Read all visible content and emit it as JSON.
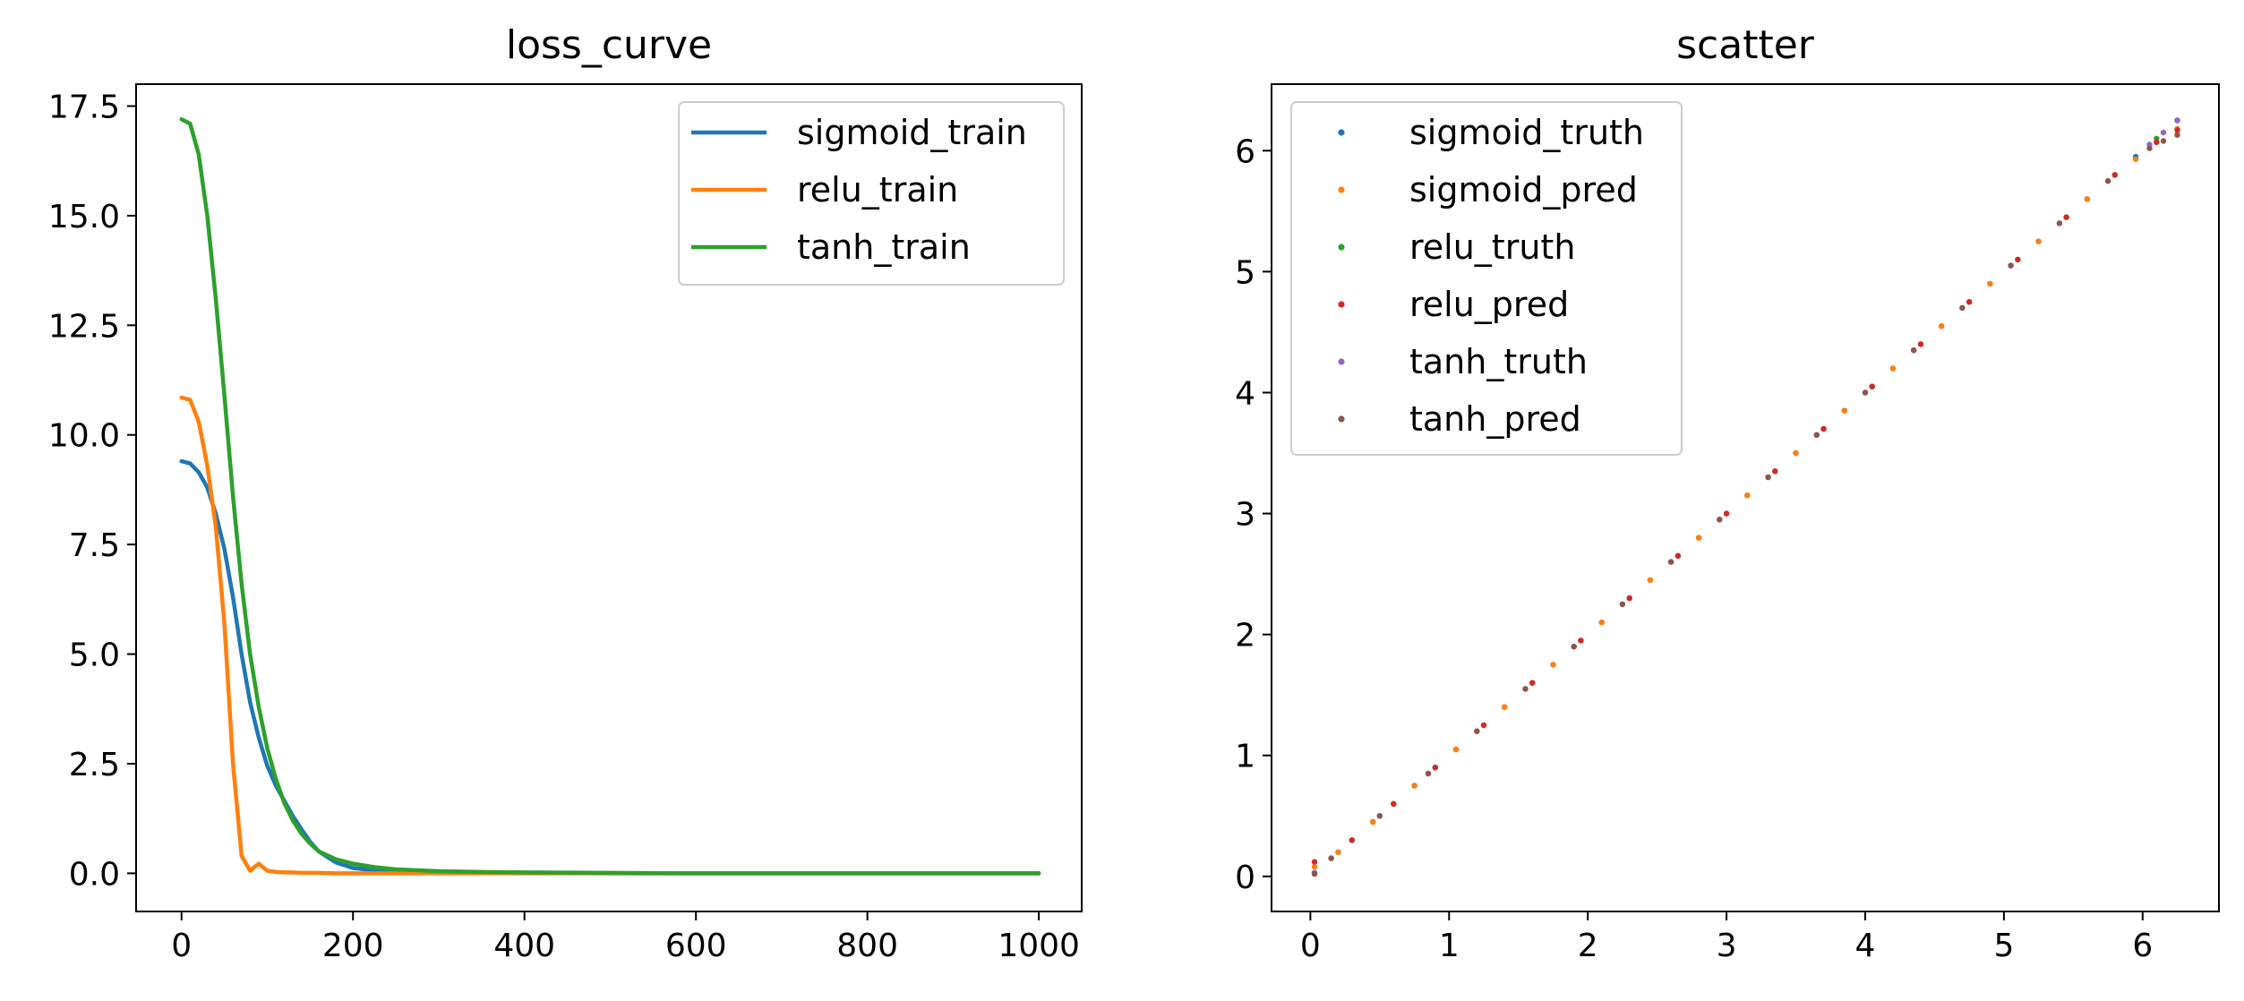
{
  "chart_data": [
    {
      "type": "line",
      "title": "loss_curve",
      "xlabel": "",
      "ylabel": "",
      "xlim": [
        -53,
        1050
      ],
      "ylim": [
        -0.87,
        18.0
      ],
      "xticks": [
        0,
        200,
        400,
        600,
        800,
        1000
      ],
      "xtick_labels": [
        "0",
        "200",
        "400",
        "600",
        "800",
        "1000"
      ],
      "yticks": [
        0.0,
        2.5,
        5.0,
        7.5,
        10.0,
        12.5,
        15.0,
        17.5
      ],
      "ytick_labels": [
        "0.0",
        "2.5",
        "5.0",
        "7.5",
        "10.0",
        "12.5",
        "15.0",
        "17.5"
      ],
      "grid": false,
      "legend_position": "top-right",
      "x": [
        0,
        10,
        20,
        30,
        40,
        50,
        60,
        70,
        80,
        90,
        100,
        110,
        120,
        130,
        140,
        150,
        160,
        180,
        200,
        225,
        250,
        275,
        300,
        350,
        400,
        500,
        600,
        700,
        800,
        900,
        1000
      ],
      "series": [
        {
          "name": "sigmoid_train",
          "color": "#1f77b4",
          "values": [
            9.4,
            9.35,
            9.15,
            8.8,
            8.2,
            7.4,
            6.3,
            5.0,
            3.9,
            3.1,
            2.45,
            2.0,
            1.65,
            1.3,
            1.0,
            0.72,
            0.5,
            0.25,
            0.12,
            0.07,
            0.04,
            0.03,
            0.02,
            0.01,
            0.01,
            0.0,
            0.0,
            0.0,
            0.0,
            0.0,
            0.0
          ]
        },
        {
          "name": "relu_train",
          "color": "#ff7f0e",
          "values": [
            10.85,
            10.8,
            10.3,
            9.3,
            7.9,
            5.7,
            2.5,
            0.4,
            0.06,
            0.22,
            0.06,
            0.03,
            0.02,
            0.02,
            0.01,
            0.01,
            0.01,
            0.0,
            0.0,
            0.0,
            0.0,
            0.0,
            0.0,
            0.0,
            0.0,
            0.0,
            0.0,
            0.0,
            0.0,
            0.0,
            0.0
          ]
        },
        {
          "name": "tanh_train",
          "color": "#2ca02c",
          "values": [
            17.2,
            17.1,
            16.4,
            15.0,
            13.1,
            10.9,
            8.6,
            6.6,
            5.0,
            3.8,
            2.85,
            2.15,
            1.6,
            1.2,
            0.9,
            0.68,
            0.5,
            0.32,
            0.22,
            0.14,
            0.09,
            0.07,
            0.05,
            0.03,
            0.02,
            0.01,
            0.0,
            0.0,
            0.0,
            0.0,
            0.0
          ]
        }
      ]
    },
    {
      "type": "scatter",
      "title": "scatter",
      "xlabel": "",
      "ylabel": "",
      "xlim": [
        -0.28,
        6.55
      ],
      "ylim": [
        -0.29,
        6.55
      ],
      "xticks": [
        0,
        1,
        2,
        3,
        4,
        5,
        6
      ],
      "xtick_labels": [
        "0",
        "1",
        "2",
        "3",
        "4",
        "5",
        "6"
      ],
      "yticks": [
        0,
        1,
        2,
        3,
        4,
        5,
        6
      ],
      "ytick_labels": [
        "0",
        "1",
        "2",
        "3",
        "4",
        "5",
        "6"
      ],
      "grid": false,
      "legend_position": "top-left",
      "series": [
        {
          "name": "sigmoid_truth",
          "color": "#1f77b4",
          "points": [
            [
              0.03,
              0.03
            ],
            [
              0.2,
              0.2
            ],
            [
              0.45,
              0.45
            ],
            [
              0.75,
              0.75
            ],
            [
              1.05,
              1.05
            ],
            [
              1.4,
              1.4
            ],
            [
              1.75,
              1.75
            ],
            [
              2.1,
              2.1
            ],
            [
              2.45,
              2.45
            ],
            [
              2.8,
              2.8
            ],
            [
              3.15,
              3.15
            ],
            [
              3.5,
              3.5
            ],
            [
              3.85,
              3.85
            ],
            [
              4.2,
              4.2
            ],
            [
              4.55,
              4.55
            ],
            [
              4.9,
              4.9
            ],
            [
              5.25,
              5.25
            ],
            [
              5.6,
              5.6
            ],
            [
              5.95,
              5.95
            ],
            [
              6.25,
              6.25
            ]
          ]
        },
        {
          "name": "sigmoid_pred",
          "color": "#ff7f0e",
          "points": [
            [
              0.03,
              0.08
            ],
            [
              0.2,
              0.2
            ],
            [
              0.45,
              0.45
            ],
            [
              0.75,
              0.75
            ],
            [
              1.05,
              1.05
            ],
            [
              1.4,
              1.4
            ],
            [
              1.75,
              1.75
            ],
            [
              2.1,
              2.1
            ],
            [
              2.45,
              2.45
            ],
            [
              2.8,
              2.8
            ],
            [
              3.15,
              3.15
            ],
            [
              3.5,
              3.5
            ],
            [
              3.85,
              3.85
            ],
            [
              4.2,
              4.2
            ],
            [
              4.55,
              4.55
            ],
            [
              4.9,
              4.9
            ],
            [
              5.25,
              5.25
            ],
            [
              5.6,
              5.6
            ],
            [
              5.95,
              5.93
            ],
            [
              6.25,
              6.18
            ]
          ]
        },
        {
          "name": "relu_truth",
          "color": "#2ca02c",
          "points": [
            [
              0.03,
              0.03
            ],
            [
              0.3,
              0.3
            ],
            [
              0.6,
              0.6
            ],
            [
              0.9,
              0.9
            ],
            [
              1.25,
              1.25
            ],
            [
              1.6,
              1.6
            ],
            [
              1.95,
              1.95
            ],
            [
              2.3,
              2.3
            ],
            [
              2.65,
              2.65
            ],
            [
              3.0,
              3.0
            ],
            [
              3.35,
              3.35
            ],
            [
              3.7,
              3.7
            ],
            [
              4.05,
              4.05
            ],
            [
              4.4,
              4.4
            ],
            [
              4.75,
              4.75
            ],
            [
              5.1,
              5.1
            ],
            [
              5.45,
              5.45
            ],
            [
              5.8,
              5.8
            ],
            [
              6.1,
              6.1
            ],
            [
              6.25,
              6.25
            ]
          ]
        },
        {
          "name": "relu_pred",
          "color": "#d62728",
          "points": [
            [
              0.03,
              0.12
            ],
            [
              0.3,
              0.3
            ],
            [
              0.6,
              0.6
            ],
            [
              0.9,
              0.9
            ],
            [
              1.25,
              1.25
            ],
            [
              1.6,
              1.6
            ],
            [
              1.95,
              1.95
            ],
            [
              2.3,
              2.3
            ],
            [
              2.65,
              2.65
            ],
            [
              3.0,
              3.0
            ],
            [
              3.35,
              3.35
            ],
            [
              3.7,
              3.7
            ],
            [
              4.05,
              4.05
            ],
            [
              4.4,
              4.4
            ],
            [
              4.75,
              4.75
            ],
            [
              5.1,
              5.1
            ],
            [
              5.45,
              5.45
            ],
            [
              5.8,
              5.8
            ],
            [
              6.1,
              6.07
            ],
            [
              6.25,
              6.17
            ]
          ]
        },
        {
          "name": "tanh_truth",
          "color": "#9467bd",
          "points": [
            [
              0.03,
              0.03
            ],
            [
              0.15,
              0.15
            ],
            [
              0.5,
              0.5
            ],
            [
              0.85,
              0.85
            ],
            [
              1.2,
              1.2
            ],
            [
              1.55,
              1.55
            ],
            [
              1.9,
              1.9
            ],
            [
              2.25,
              2.25
            ],
            [
              2.6,
              2.6
            ],
            [
              2.95,
              2.95
            ],
            [
              3.3,
              3.3
            ],
            [
              3.65,
              3.65
            ],
            [
              4.0,
              4.0
            ],
            [
              4.35,
              4.35
            ],
            [
              4.7,
              4.7
            ],
            [
              5.05,
              5.05
            ],
            [
              5.4,
              5.4
            ],
            [
              5.75,
              5.75
            ],
            [
              6.05,
              6.05
            ],
            [
              6.15,
              6.15
            ],
            [
              6.25,
              6.25
            ]
          ]
        },
        {
          "name": "tanh_pred",
          "color": "#8c564b",
          "points": [
            [
              0.03,
              0.02
            ],
            [
              0.15,
              0.15
            ],
            [
              0.5,
              0.5
            ],
            [
              0.85,
              0.85
            ],
            [
              1.2,
              1.2
            ],
            [
              1.55,
              1.55
            ],
            [
              1.9,
              1.9
            ],
            [
              2.25,
              2.25
            ],
            [
              2.6,
              2.6
            ],
            [
              2.95,
              2.95
            ],
            [
              3.3,
              3.3
            ],
            [
              3.65,
              3.65
            ],
            [
              4.0,
              4.0
            ],
            [
              4.35,
              4.35
            ],
            [
              4.7,
              4.7
            ],
            [
              5.05,
              5.05
            ],
            [
              5.4,
              5.4
            ],
            [
              5.75,
              5.75
            ],
            [
              6.05,
              6.02
            ],
            [
              6.15,
              6.08
            ],
            [
              6.25,
              6.13
            ]
          ]
        }
      ]
    }
  ]
}
